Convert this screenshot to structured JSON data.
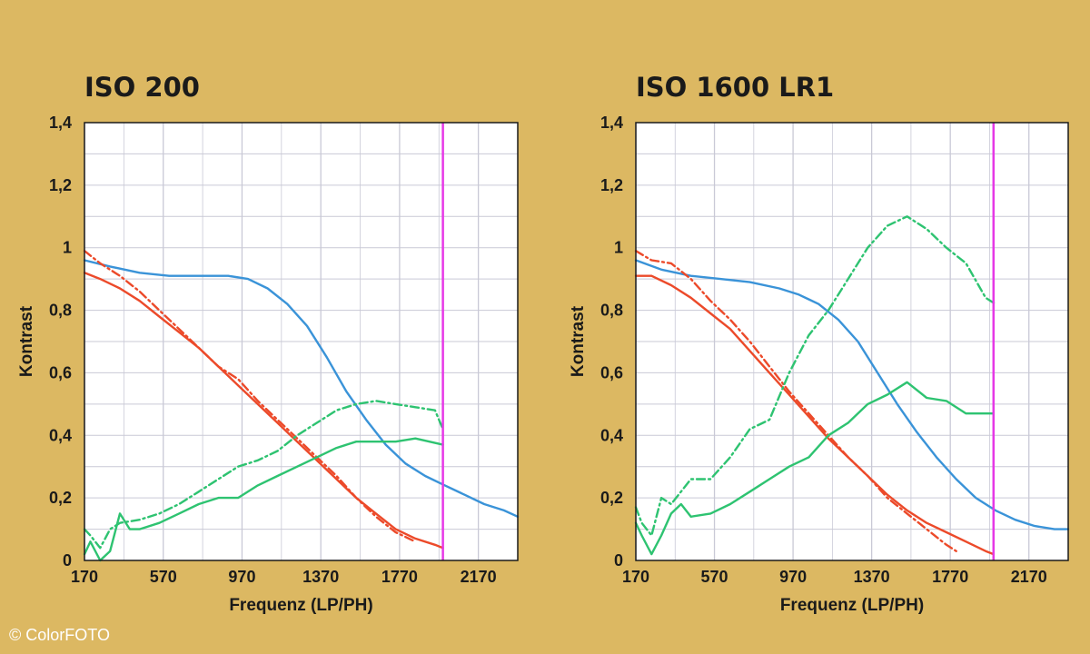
{
  "credit": "© ColorFOTO",
  "colors": {
    "background": "#dcb862",
    "plot_bg": "#ffffff",
    "grid": "#c9c9d6",
    "blue": "#3a93d8",
    "red": "#ec4a2a",
    "green": "#2ec371",
    "magenta": "#e638e6"
  },
  "chart_data": [
    {
      "type": "line",
      "title": "ISO 200",
      "xlabel": "Frequenz (LP/PH)",
      "ylabel": "Kontrast",
      "xlim": [
        170,
        2370
      ],
      "ylim": [
        0,
        1.4
      ],
      "x_ticks": [
        "170",
        "570",
        "970",
        "1370",
        "1770",
        "2170"
      ],
      "y_ticks": [
        "0",
        "0,2",
        "0,4",
        "0,6",
        "0,8",
        "1",
        "1,2",
        "1,4"
      ],
      "grid": true,
      "marker_line_x": 1990,
      "series": [
        {
          "color": "blue",
          "style": "solid",
          "x": [
            170,
            300,
            450,
            600,
            750,
            900,
            1000,
            1100,
            1200,
            1300,
            1400,
            1500,
            1600,
            1700,
            1800,
            1900,
            2000,
            2100,
            2200,
            2300,
            2370
          ],
          "y": [
            0.96,
            0.94,
            0.92,
            0.91,
            0.91,
            0.91,
            0.9,
            0.87,
            0.82,
            0.75,
            0.65,
            0.54,
            0.45,
            0.37,
            0.31,
            0.27,
            0.24,
            0.21,
            0.18,
            0.16,
            0.14
          ]
        },
        {
          "color": "red",
          "style": "solid",
          "x": [
            170,
            250,
            350,
            450,
            550,
            650,
            750,
            850,
            950,
            1050,
            1150,
            1250,
            1350,
            1450,
            1550,
            1650,
            1750,
            1850,
            1950,
            1990
          ],
          "y": [
            0.92,
            0.9,
            0.87,
            0.83,
            0.78,
            0.73,
            0.68,
            0.62,
            0.56,
            0.5,
            0.44,
            0.38,
            0.32,
            0.26,
            0.2,
            0.15,
            0.1,
            0.07,
            0.05,
            0.04
          ]
        },
        {
          "color": "red",
          "style": "dashdot",
          "x": [
            170,
            250,
            350,
            450,
            550,
            650,
            750,
            850,
            950,
            1050,
            1150,
            1250,
            1350,
            1450,
            1550,
            1650,
            1750,
            1850
          ],
          "y": [
            0.99,
            0.95,
            0.91,
            0.86,
            0.8,
            0.74,
            0.68,
            0.62,
            0.58,
            0.51,
            0.45,
            0.39,
            0.33,
            0.27,
            0.2,
            0.14,
            0.09,
            0.06
          ]
        },
        {
          "color": "green",
          "style": "solid",
          "x": [
            170,
            200,
            250,
            300,
            350,
            400,
            450,
            550,
            650,
            750,
            850,
            950,
            1050,
            1150,
            1250,
            1350,
            1450,
            1550,
            1650,
            1750,
            1850,
            1990
          ],
          "y": [
            0.02,
            0.06,
            0.0,
            0.03,
            0.15,
            0.1,
            0.1,
            0.12,
            0.15,
            0.18,
            0.2,
            0.2,
            0.24,
            0.27,
            0.3,
            0.33,
            0.36,
            0.38,
            0.38,
            0.38,
            0.39,
            0.37
          ]
        },
        {
          "color": "green",
          "style": "dashdot",
          "x": [
            170,
            200,
            250,
            300,
            350,
            450,
            550,
            650,
            750,
            850,
            950,
            1050,
            1150,
            1250,
            1350,
            1450,
            1550,
            1650,
            1750,
            1850,
            1950,
            1990
          ],
          "y": [
            0.1,
            0.08,
            0.04,
            0.1,
            0.12,
            0.13,
            0.15,
            0.18,
            0.22,
            0.26,
            0.3,
            0.32,
            0.35,
            0.4,
            0.44,
            0.48,
            0.5,
            0.51,
            0.5,
            0.49,
            0.48,
            0.42
          ]
        }
      ]
    },
    {
      "type": "line",
      "title": "ISO 1600 LR1",
      "xlabel": "Frequenz (LP/PH)",
      "ylabel": "Kontrast",
      "xlim": [
        170,
        2370
      ],
      "ylim": [
        0,
        1.4
      ],
      "x_ticks": [
        "170",
        "570",
        "970",
        "1370",
        "1770",
        "2170"
      ],
      "y_ticks": [
        "0",
        "0,2",
        "0,4",
        "0,6",
        "0,8",
        "1",
        "1,2",
        "1,4"
      ],
      "grid": true,
      "marker_line_x": 1990,
      "series": [
        {
          "color": "blue",
          "style": "solid",
          "x": [
            170,
            300,
            450,
            600,
            750,
            900,
            1000,
            1100,
            1200,
            1300,
            1400,
            1500,
            1600,
            1700,
            1800,
            1900,
            2000,
            2100,
            2200,
            2300,
            2370
          ],
          "y": [
            0.96,
            0.93,
            0.91,
            0.9,
            0.89,
            0.87,
            0.85,
            0.82,
            0.77,
            0.7,
            0.6,
            0.5,
            0.41,
            0.33,
            0.26,
            0.2,
            0.16,
            0.13,
            0.11,
            0.1,
            0.1
          ]
        },
        {
          "color": "red",
          "style": "solid",
          "x": [
            170,
            250,
            350,
            450,
            550,
            650,
            750,
            850,
            950,
            1050,
            1150,
            1250,
            1350,
            1450,
            1550,
            1650,
            1750,
            1850,
            1950,
            1990
          ],
          "y": [
            0.91,
            0.91,
            0.88,
            0.84,
            0.79,
            0.74,
            0.67,
            0.6,
            0.53,
            0.46,
            0.39,
            0.33,
            0.27,
            0.21,
            0.16,
            0.12,
            0.09,
            0.06,
            0.03,
            0.02
          ]
        },
        {
          "color": "red",
          "style": "dashdot",
          "x": [
            170,
            250,
            350,
            450,
            550,
            650,
            750,
            850,
            950,
            1050,
            1150,
            1250,
            1350,
            1450,
            1550,
            1650,
            1750,
            1800
          ],
          "y": [
            0.99,
            0.96,
            0.95,
            0.9,
            0.83,
            0.77,
            0.7,
            0.62,
            0.54,
            0.47,
            0.4,
            0.33,
            0.27,
            0.2,
            0.15,
            0.1,
            0.05,
            0.03
          ]
        },
        {
          "color": "green",
          "style": "solid",
          "x": [
            170,
            200,
            250,
            300,
            350,
            400,
            450,
            550,
            650,
            750,
            850,
            950,
            1050,
            1150,
            1250,
            1350,
            1450,
            1550,
            1650,
            1750,
            1850,
            1990
          ],
          "y": [
            0.12,
            0.08,
            0.02,
            0.08,
            0.15,
            0.18,
            0.14,
            0.15,
            0.18,
            0.22,
            0.26,
            0.3,
            0.33,
            0.4,
            0.44,
            0.5,
            0.53,
            0.57,
            0.52,
            0.51,
            0.47,
            0.47
          ]
        },
        {
          "color": "green",
          "style": "dashdot",
          "x": [
            170,
            200,
            250,
            300,
            350,
            450,
            550,
            650,
            750,
            850,
            950,
            1050,
            1150,
            1250,
            1350,
            1450,
            1550,
            1650,
            1750,
            1850,
            1950,
            2000
          ],
          "y": [
            0.17,
            0.12,
            0.08,
            0.2,
            0.18,
            0.26,
            0.26,
            0.33,
            0.42,
            0.45,
            0.6,
            0.72,
            0.8,
            0.9,
            1.0,
            1.07,
            1.1,
            1.06,
            1.0,
            0.95,
            0.84,
            0.82
          ]
        }
      ]
    }
  ]
}
